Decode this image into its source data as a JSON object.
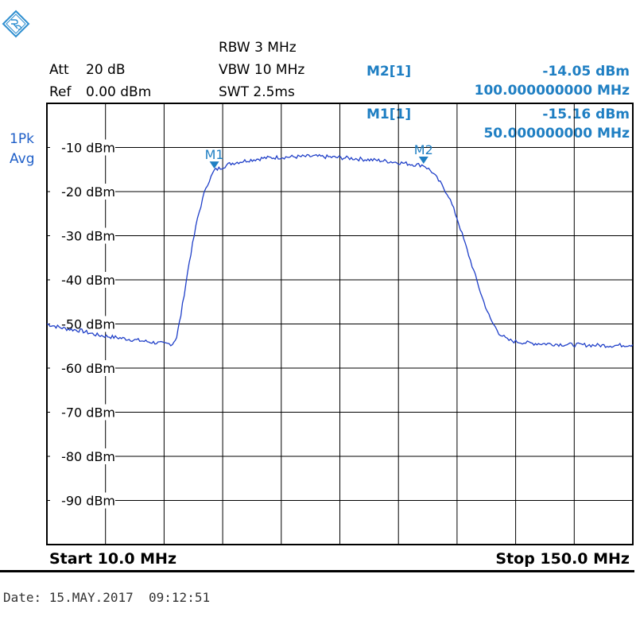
{
  "header": {
    "att_label": "Att",
    "att_value": "20 dB",
    "ref_label": "Ref",
    "ref_value": "0.00 dBm",
    "rbw": "RBW 3 MHz",
    "vbw": "VBW 10 MHz",
    "swt": "SWT 2.5ms",
    "trace_mode_1": "1Pk",
    "trace_mode_2": "Avg"
  },
  "markers": [
    {
      "name": "M2[1]",
      "level": "-14.05 dBm",
      "freq": "100.000000000 MHz",
      "x": 100,
      "y": -14.05,
      "label": "M2"
    },
    {
      "name": "M1[1]",
      "level": "-15.16 dBm",
      "freq": "50.000000000 MHz",
      "x": 50,
      "y": -15.16,
      "label": "M1"
    }
  ],
  "footer": {
    "start": "Start 10.0 MHz",
    "stop": "Stop 150.0 MHz",
    "date": "Date: 15.MAY.2017  09:12:51"
  },
  "colors": {
    "trace": "#1f3fc8",
    "marker": "#1f7fc3",
    "grid": "#000000"
  },
  "chart_data": {
    "type": "line",
    "xlim": [
      10,
      150
    ],
    "ylim": [
      -100,
      0
    ],
    "grid": true,
    "y_ticks": [
      -10,
      -20,
      -30,
      -40,
      -50,
      -60,
      -70,
      -80,
      -90
    ],
    "y_tick_labels": [
      "-10 dBm",
      "-20 dBm",
      "-30 dBm",
      "-40 dBm",
      "-50 dBm",
      "-60 dBm",
      "-70 dBm",
      "-80 dBm",
      "-90 dBm"
    ],
    "series": [
      {
        "x": [
          10,
          14,
          18,
          22,
          26,
          30,
          34,
          38,
          40,
          41,
          42,
          44,
          46,
          48,
          50,
          54,
          58,
          62,
          66,
          70,
          74,
          78,
          82,
          86,
          90,
          94,
          98,
          100,
          102,
          104,
          106,
          108,
          110,
          112,
          114,
          116,
          118,
          120,
          122,
          124,
          126,
          130,
          135,
          140,
          145,
          150
        ],
        "y": [
          -50,
          -51,
          -51.5,
          -52.5,
          -53,
          -53.5,
          -54,
          -54.5,
          -54.5,
          -53,
          -48,
          -36,
          -26,
          -19,
          -15.2,
          -13.6,
          -12.9,
          -12.4,
          -12.2,
          -12.1,
          -12.0,
          -12.2,
          -12.4,
          -12.7,
          -13.0,
          -13.4,
          -13.9,
          -14.0,
          -15.5,
          -18,
          -21,
          -26,
          -32,
          -38,
          -44,
          -49,
          -52,
          -53.6,
          -54,
          -54.2,
          -54.4,
          -54.5,
          -54.7,
          -54.8,
          -54.9,
          -54.7
        ]
      }
    ]
  }
}
